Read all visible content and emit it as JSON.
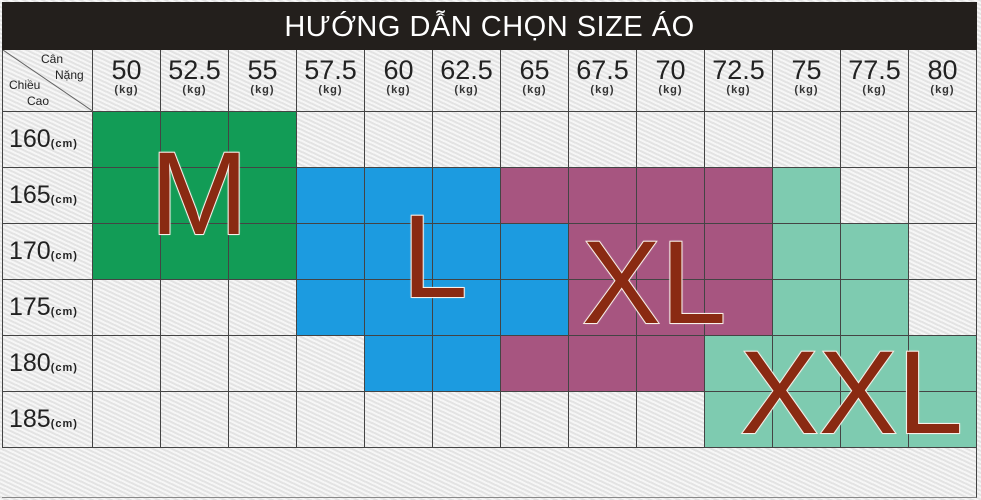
{
  "title": "HƯỚNG DẪN CHỌN SIZE ÁO",
  "corner": {
    "top": "Cân",
    "top2": "Nặng",
    "bottom": "Chiều",
    "bottom2": "Cao"
  },
  "weight_unit": "(kg)",
  "height_unit": "(cm)",
  "weights": [
    "50",
    "52.5",
    "55",
    "57.5",
    "60",
    "62.5",
    "65",
    "67.5",
    "70",
    "72.5",
    "75",
    "77.5",
    "80"
  ],
  "heights": [
    "160",
    "165",
    "170",
    "175",
    "180",
    "185"
  ],
  "sizes": {
    "M": {
      "label": "M",
      "color": "#129c56"
    },
    "L": {
      "label": "L",
      "color": "#1c9be0"
    },
    "XL": {
      "label": "XL",
      "color": "#a75580"
    },
    "XXL": {
      "label": "XXL",
      "color": "#7ecbb0"
    }
  },
  "grid": [
    [
      "M",
      "M",
      "M",
      "",
      "",
      "",
      "",
      "",
      "",
      "",
      "",
      "",
      ""
    ],
    [
      "M",
      "M",
      "M",
      "L",
      "L",
      "L",
      "XL",
      "XL",
      "XL",
      "XL",
      "XXL",
      "",
      ""
    ],
    [
      "M",
      "M",
      "M",
      "L",
      "L",
      "L",
      "L",
      "XL",
      "XL",
      "XL",
      "XXL",
      "XXL",
      ""
    ],
    [
      "",
      "",
      "",
      "L",
      "L",
      "L",
      "L",
      "XL",
      "XL",
      "XL",
      "XXL",
      "XXL",
      ""
    ],
    [
      "",
      "",
      "",
      "",
      "L",
      "L",
      "XL",
      "XL",
      "XL",
      "XXL",
      "XXL",
      "XXL",
      "XXL"
    ],
    [
      "",
      "",
      "",
      "",
      "",
      "",
      "",
      "",
      "",
      "XXL",
      "XXL",
      "XXL",
      "XXL"
    ]
  ]
}
